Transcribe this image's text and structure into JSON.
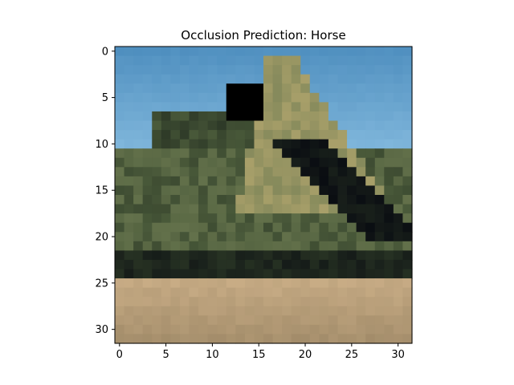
{
  "figure": {
    "title": "Occlusion Prediction: Horse"
  },
  "image_grid": {
    "size": 32,
    "occlusion_patch": {
      "row_start": 4,
      "row_end": 7,
      "col_start": 12,
      "col_end": 15,
      "color": "#000000"
    }
  },
  "axes": {
    "x_ticks": [
      "0",
      "5",
      "10",
      "15",
      "20",
      "25",
      "30"
    ],
    "y_ticks": [
      "0",
      "5",
      "10",
      "15",
      "20",
      "25",
      "30"
    ],
    "x_tick_values": [
      0,
      5,
      10,
      15,
      20,
      25,
      30
    ],
    "y_tick_values": [
      0,
      5,
      10,
      15,
      20,
      25,
      30
    ]
  },
  "colors": {
    "sky_top": "#4f8fbf",
    "sky_mid": "#6aa8d6",
    "sky_low": "#88bde0",
    "ground_dark": "#a08a68",
    "ground_light": "#c9ad86",
    "foliage_dark": "#273223",
    "foliage_mid": "#4a5a3a",
    "foliage_light": "#6e7b52",
    "tan": "#a9a06a",
    "black": "#0a0d12"
  }
}
